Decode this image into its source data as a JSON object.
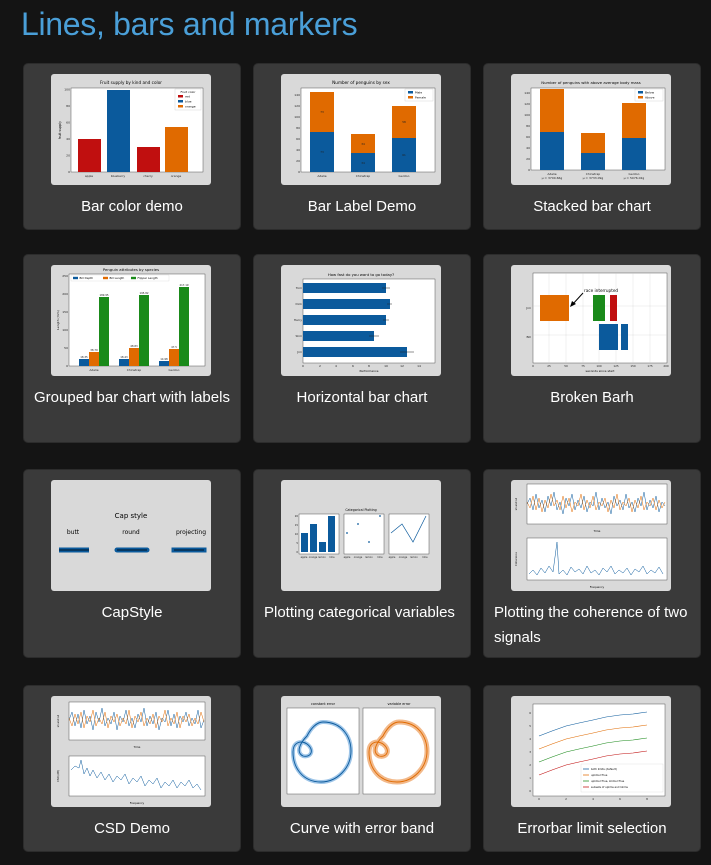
{
  "page": {
    "title": "Lines, bars and markers"
  },
  "colors": {
    "blue": "#0b5a9c",
    "orange": "#e06a00",
    "red": "#c00f0f",
    "green": "#1a8a1a",
    "title": "#4a9fd8",
    "card": "#3a3a3a"
  },
  "cards": [
    {
      "title": "Bar color demo",
      "icon": "bar-color-demo-thumbnail"
    },
    {
      "title": "Bar Label Demo",
      "icon": "bar-label-demo-thumbnail"
    },
    {
      "title": "Stacked bar chart",
      "icon": "stacked-bar-chart-thumbnail"
    },
    {
      "title": "Grouped bar chart with labels",
      "icon": "grouped-bar-chart-thumbnail"
    },
    {
      "title": "Horizontal bar chart",
      "icon": "horizontal-bar-chart-thumbnail"
    },
    {
      "title": "Broken Barh",
      "icon": "broken-barh-thumbnail"
    },
    {
      "title": "CapStyle",
      "icon": "capstyle-thumbnail"
    },
    {
      "title": "Plotting categorical variables",
      "icon": "categorical-variables-thumbnail"
    },
    {
      "title": "Plotting the coherence of two signals",
      "icon": "coherence-thumbnail"
    },
    {
      "title": "CSD Demo",
      "icon": "csd-demo-thumbnail"
    },
    {
      "title": "Curve with error band",
      "icon": "curve-error-band-thumbnail"
    },
    {
      "title": "Errorbar limit selection",
      "icon": "errorbar-limits-thumbnail"
    }
  ],
  "thumbs": {
    "bar_color": {
      "title": "Fruit supply by kind and color",
      "ylabel": "fruit supply",
      "legend_title": "Fruit color",
      "legend": [
        "red",
        "blue",
        "orange"
      ],
      "categories": [
        "apple",
        "blueberry",
        "cherry",
        "orange"
      ],
      "values": [
        40,
        100,
        30,
        55
      ]
    },
    "bar_label": {
      "title": "Number of penguins by sex",
      "legend": [
        "Male",
        "Female"
      ],
      "categories": [
        "Adelie",
        "Chinstrap",
        "Gentoo"
      ],
      "male": [
        73,
        34,
        61
      ],
      "female": [
        73,
        34,
        58
      ]
    },
    "stacked": {
      "title": "Number of penguins with above average body mass",
      "legend": [
        "Below",
        "Above"
      ],
      "categories": [
        "Adelie",
        "Chinstrap",
        "Gentoo"
      ],
      "sublabels": [
        "μ = 3700.66g",
        "μ = 3733.09g",
        "μ = 5076.02g"
      ],
      "below": [
        70,
        31,
        58
      ],
      "above": [
        82,
        37,
        66
      ]
    },
    "grouped": {
      "title": "Penguin attributes by species",
      "ylabel": "Length (mm)",
      "legend": [
        "Bill Depth",
        "Bill Length",
        "Flipper Length"
      ],
      "categories": [
        "Adelie",
        "Chinstrap",
        "Gentoo"
      ],
      "series": [
        [
          18.35,
          18.43,
          14.98
        ],
        [
          38.79,
          48.83,
          47.5
        ],
        [
          189.95,
          195.82,
          217.19
        ]
      ],
      "labels": [
        [
          "18.35",
          "18.43",
          "14.98"
        ],
        [
          "38.79",
          "48.83",
          "47.5"
        ],
        [
          "189.95",
          "195.82",
          "217.19"
        ]
      ]
    },
    "hbar": {
      "title": "How fast do you want to go today?",
      "xlabel": "Performance",
      "categories": [
        "Tom",
        "Dick",
        "Harry",
        "Slim",
        "Jim"
      ],
      "values": [
        10,
        10.5,
        10,
        8.5,
        12.5
      ],
      "errors": [
        0.5,
        0.3,
        0.4,
        0.6,
        0.8
      ],
      "ticks": [
        "0",
        "2",
        "4",
        "6",
        "8",
        "10",
        "12",
        "14"
      ]
    },
    "broken": {
      "annotation": "race interrupted",
      "xlabel": "seconds since start",
      "ylabels": [
        "Jim",
        "Bill"
      ],
      "xticks": [
        "0",
        "25",
        "50",
        "75",
        "100",
        "125",
        "150",
        "175",
        "200"
      ]
    },
    "capstyle": {
      "title": "Cap style",
      "labels": [
        "butt",
        "round",
        "projecting"
      ]
    },
    "categorical": {
      "title": "Categorical Plotting",
      "categories": [
        "apple",
        "orange",
        "lemon",
        "lime"
      ],
      "values": [
        10,
        15,
        5,
        20
      ]
    },
    "coherence": {
      "xlabel_top": "Time",
      "ylabel_top": "s1 and s2",
      "xlabel_bottom": "Frequency",
      "ylabel_bottom": "Coherence"
    },
    "csd": {
      "xlabel_top": "Time",
      "ylabel_top": "s1 and s2",
      "xlabel_bottom": "Frequency",
      "ylabel_bottom": "CSD (dB)"
    },
    "errband": {
      "titles": [
        "constant error",
        "variable error"
      ]
    },
    "errorbar": {
      "legend": [
        "both limits (default)",
        "uplims=True",
        "uplims=True, lolims=True",
        "subsets of uplims and lolims"
      ]
    }
  }
}
